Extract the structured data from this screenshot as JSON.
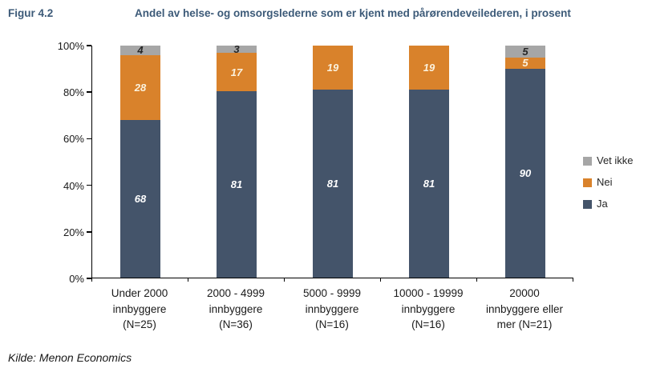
{
  "figure": {
    "label": "Figur 4.2",
    "title": "Andel av helse- og omsorgslederne som er kjent med pårørendeveilederen, i prosent",
    "source": "Kilde: Menon Economics"
  },
  "chart_data": {
    "type": "bar",
    "subtype": "stacked-percent",
    "title": "Andel av helse- og omsorgslederne som er kjent med pårørendeveilederen, i prosent",
    "xlabel": "",
    "ylabel": "",
    "ylim": [
      0,
      100
    ],
    "grid": false,
    "legend_position": "right",
    "y_ticks": [
      "0%",
      "20%",
      "40%",
      "60%",
      "80%",
      "100%"
    ],
    "categories": [
      [
        "Under 2000",
        "innbyggere",
        "(N=25)"
      ],
      [
        "2000 - 4999",
        "innbyggere",
        "(N=36)"
      ],
      [
        "5000 - 9999",
        "innbyggere",
        "(N=16)"
      ],
      [
        "10000 - 19999",
        "innbyggere",
        "(N=16)"
      ],
      [
        "20000",
        "innbyggere eller",
        "mer (N=21)"
      ]
    ],
    "series": [
      {
        "name": "Ja",
        "color": "#44546A",
        "label_color": "#FFFFFF",
        "values": [
          68,
          81,
          81,
          81,
          90
        ]
      },
      {
        "name": "Nei",
        "color": "#D9822B",
        "label_color": "#FBF2DE",
        "values": [
          28,
          17,
          19,
          19,
          5
        ]
      },
      {
        "name": "Vet ikke",
        "color": "#A6A6A6",
        "label_color": "#262626",
        "values": [
          4,
          3,
          0,
          0,
          5
        ]
      }
    ],
    "legend_order": [
      "Vet ikke",
      "Nei",
      "Ja"
    ]
  }
}
